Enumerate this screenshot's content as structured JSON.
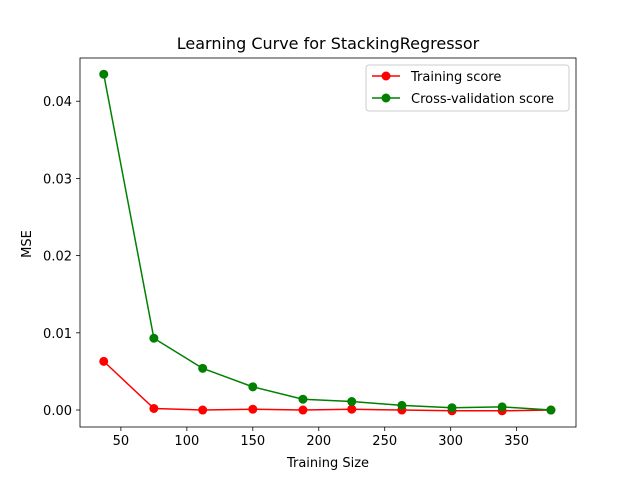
{
  "chart_data": {
    "type": "line",
    "title": "Learning Curve for StackingRegressor",
    "xlabel": "Training Size",
    "ylabel": "MSE",
    "xlim": [
      19,
      395
    ],
    "ylim": [
      -0.0022,
      0.0456
    ],
    "x": [
      37,
      75,
      112,
      150,
      188,
      225,
      263,
      301,
      339,
      376
    ],
    "x_ticks": [
      50,
      100,
      150,
      200,
      250,
      300,
      350
    ],
    "y_ticks": [
      0.0,
      0.01,
      0.02,
      0.03,
      0.04
    ],
    "y_tick_labels": [
      "0.00",
      "0.01",
      "0.02",
      "0.03",
      "0.04"
    ],
    "legend_position": "top-right",
    "grid": false,
    "series": [
      {
        "name": "Training score",
        "color": "#ff0000",
        "marker": "circle",
        "values": [
          0.0063,
          0.0002,
          0.0,
          0.0001,
          0.0,
          0.0001,
          0.0,
          -0.0001,
          -0.0001,
          0.0
        ]
      },
      {
        "name": "Cross-validation score",
        "color": "#008000",
        "marker": "circle",
        "values": [
          0.0435,
          0.0093,
          0.0054,
          0.003,
          0.0014,
          0.0011,
          0.0006,
          0.0003,
          0.0004,
          0.0
        ]
      }
    ]
  }
}
